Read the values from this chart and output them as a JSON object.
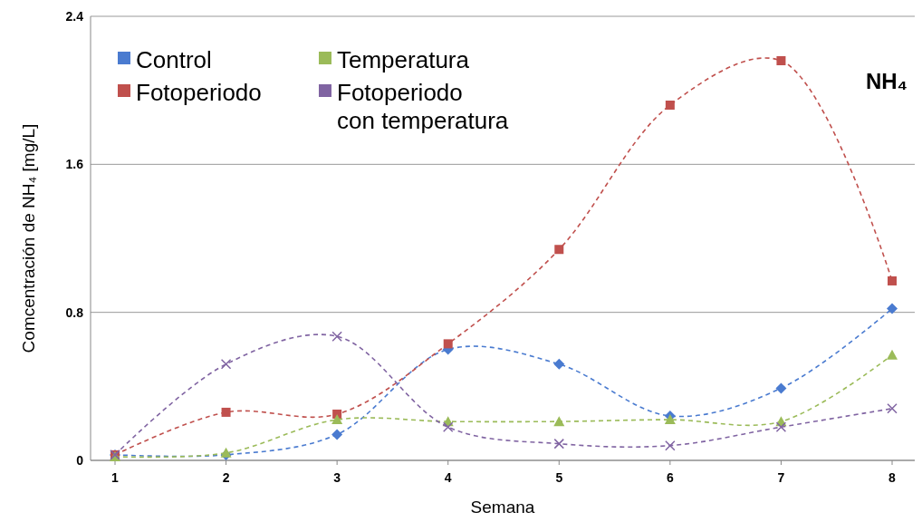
{
  "chart_data": {
    "type": "line",
    "title": "NH₄",
    "xlabel": "Semana",
    "ylabel": "Comcentración  de NH₄ [mg/L]",
    "categories": [
      "1",
      "2",
      "3",
      "4",
      "5",
      "6",
      "7",
      "8"
    ],
    "series": [
      {
        "name": "Control",
        "color": "#4a7bd0",
        "marker": "diamond",
        "values": [
          0.03,
          0.03,
          0.14,
          0.6,
          0.52,
          0.24,
          0.39,
          0.82
        ]
      },
      {
        "name": "Fotoperiodo",
        "color": "#c0504d",
        "marker": "square",
        "values": [
          0.03,
          0.26,
          0.25,
          0.63,
          1.14,
          1.92,
          2.16,
          0.97
        ]
      },
      {
        "name": "Temperatura",
        "color": "#9bbb59",
        "marker": "triangle",
        "values": [
          0.02,
          0.04,
          0.22,
          0.21,
          0.21,
          0.22,
          0.21,
          0.57
        ]
      },
      {
        "name": "Fotoperiodo con temperatura",
        "color": "#8064a2",
        "marker": "cross",
        "values": [
          0.03,
          0.52,
          0.67,
          0.18,
          0.09,
          0.08,
          0.18,
          0.28
        ]
      }
    ],
    "ylim": [
      0,
      2.4
    ],
    "yticks": [
      0,
      0.8,
      1.6,
      2.4
    ],
    "grid": "y",
    "legend": "top left",
    "line_style": "dashed"
  }
}
